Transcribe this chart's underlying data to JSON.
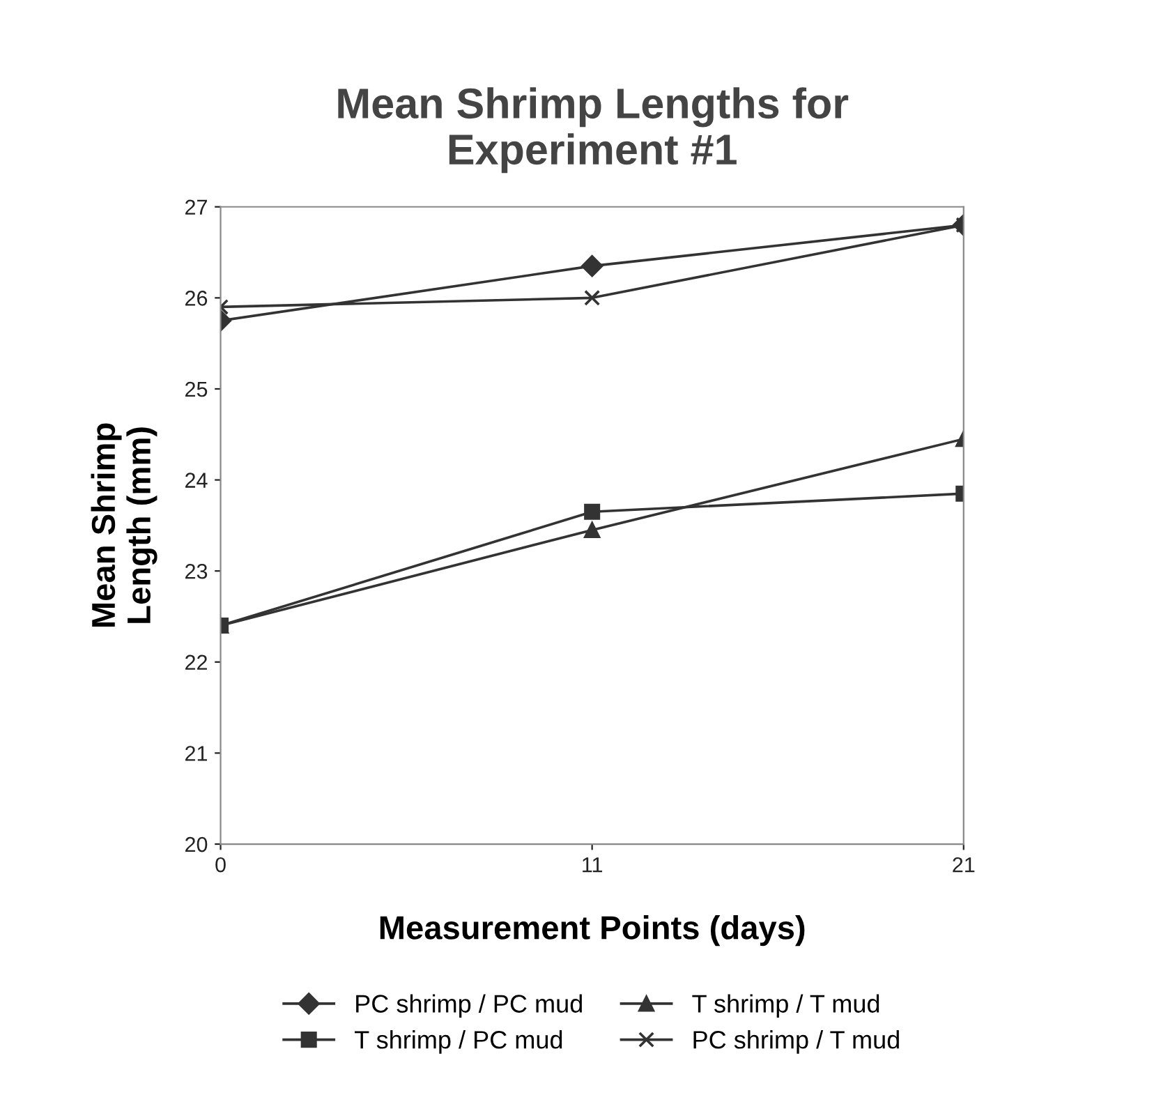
{
  "chart_data": {
    "type": "line",
    "title": "Mean Shrimp Lengths for\nExperiment #1",
    "xlabel": "Measurement Points (days)",
    "ylabel": "Mean Shrimp\nLength (mm)",
    "categories": [
      "0",
      "11",
      "21"
    ],
    "series": [
      {
        "name": "PC shrimp / PC mud",
        "color": "#333333",
        "marker": "diamond",
        "values": [
          25.75,
          26.35,
          26.8
        ]
      },
      {
        "name": "T shrimp / PC mud",
        "color": "#333333",
        "marker": "square",
        "values": [
          22.4,
          23.65,
          23.85
        ]
      },
      {
        "name": "T shrimp / T mud",
        "color": "#333333",
        "marker": "triangle",
        "values": [
          22.4,
          23.45,
          24.45
        ]
      },
      {
        "name": "PC shrimp / T mud",
        "color": "#333333",
        "marker": "cross",
        "values": [
          25.9,
          26.0,
          26.8
        ]
      }
    ],
    "ylim": [
      20,
      27
    ],
    "yticks": [
      20,
      21,
      22,
      23,
      24,
      25,
      26,
      27
    ],
    "grid": false,
    "legend": "bottom",
    "line_style": "solid"
  }
}
